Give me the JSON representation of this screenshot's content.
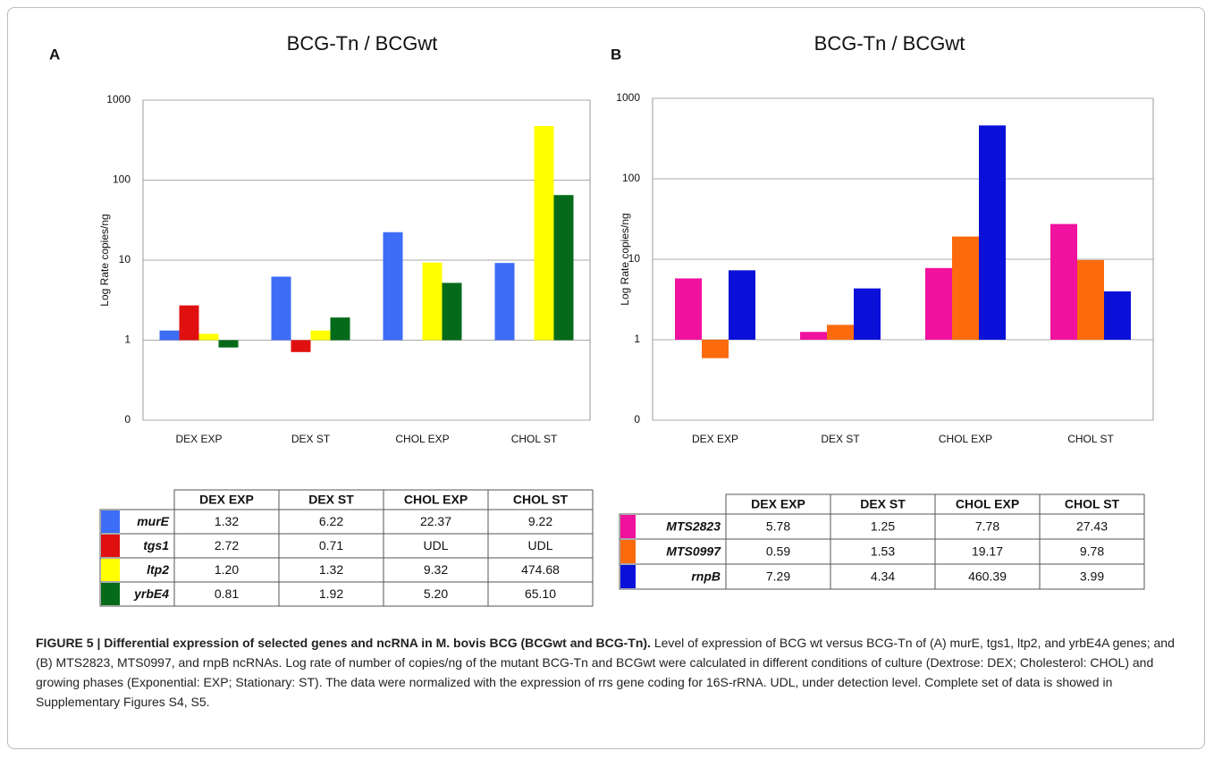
{
  "chart_data": [
    {
      "type": "bar",
      "panel": "A",
      "title": "BCG-Tn / BCGwt",
      "ylabel": "Log Rate copies/ng",
      "log_scale": true,
      "grid": true,
      "categories": [
        "DEX EXP",
        "DEX ST",
        "CHOL EXP",
        "CHOL ST"
      ],
      "ylim": [
        0.1,
        1000
      ],
      "yticks": [
        {
          "value": 0.1,
          "label": "0"
        },
        1,
        10,
        100,
        1000
      ],
      "series": [
        {
          "name": "murE",
          "color": "#3d6cf6",
          "values": [
            1.32,
            6.22,
            22.37,
            9.22
          ],
          "value_labels": [
            "1.32",
            "6.22",
            "22.37",
            "9.22"
          ]
        },
        {
          "name": "tgs1",
          "color": "#e01010",
          "values": [
            2.72,
            0.71,
            null,
            null
          ],
          "value_labels": [
            "2.72",
            "0.71",
            "UDL",
            "UDL"
          ]
        },
        {
          "name": "ltp2",
          "color": "#ffff00",
          "values": [
            1.2,
            1.32,
            9.32,
            474.68
          ],
          "value_labels": [
            "1.20",
            "1.32",
            "9.32",
            "474.68"
          ]
        },
        {
          "name": "yrbE4",
          "color": "#056b1a",
          "values": [
            0.81,
            1.92,
            5.2,
            65.1
          ],
          "value_labels": [
            "0.81",
            "1.92",
            "5.20",
            "65.10"
          ]
        }
      ]
    },
    {
      "type": "bar",
      "panel": "B",
      "title": "BCG-Tn / BCGwt",
      "ylabel": "Log Rate copies/ng",
      "log_scale": true,
      "grid": true,
      "categories": [
        "DEX EXP",
        "DEX ST",
        "CHOL EXP",
        "CHOL ST"
      ],
      "ylim": [
        0.1,
        1000
      ],
      "yticks": [
        {
          "value": 0.1,
          "label": "0"
        },
        1,
        10,
        100,
        1000
      ],
      "series": [
        {
          "name": "MTS2823",
          "color": "#f0119e",
          "values": [
            5.78,
            1.25,
            7.78,
            27.43
          ],
          "value_labels": [
            "5.78",
            "1.25",
            "7.78",
            "27.43"
          ]
        },
        {
          "name": "MTS0997",
          "color": "#fb6a0c",
          "values": [
            0.59,
            1.53,
            19.17,
            9.78
          ],
          "value_labels": [
            "0.59",
            "1.53",
            "19.17",
            "9.78"
          ]
        },
        {
          "name": "rnpB",
          "color": "#0a10d8",
          "values": [
            7.29,
            4.34,
            460.39,
            3.99
          ],
          "value_labels": [
            "7.29",
            "4.34",
            "460.39",
            "3.99"
          ]
        }
      ]
    }
  ],
  "caption": {
    "title": "FIGURE 5 | Differential expression of selected genes and ncRNA in M. bovis BCG (BCGwt and BCG-Tn).",
    "text": "Level of expression of BCG wt versus BCG-Tn of (A) murE, tgs1, ltp2, and yrbE4A genes; and (B) MTS2823, MTS0997, and rnpB ncRNAs. Log rate of number of copies/ng of the mutant BCG-Tn and BCGwt were calculated in different conditions of culture (Dextrose: DEX; Cholesterol: CHOL) and growing phases (Exponential: EXP; Stationary: ST). The data were normalized with the expression of rrs gene coding for 16S-rRNA. UDL, under detection level. Complete set of data is showed in Supplementary Figures S4, S5."
  }
}
